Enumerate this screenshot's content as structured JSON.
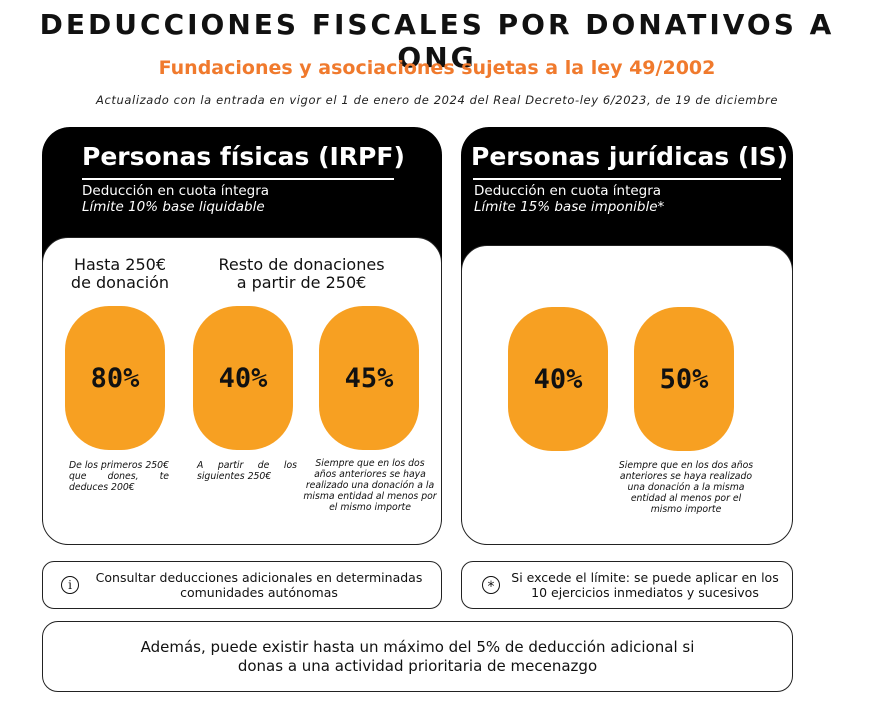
{
  "header": {
    "title": "DEDUCCIONES FISCALES POR DONATIVOS A ONG",
    "subtitle": "Fundaciones y asociaciones sujetas a la ley 49/2002",
    "updated": "Actualizado con la entrada en vigor el 1 de enero de 2024 del Real Decreto-ley 6/2023, de 19 de diciembre"
  },
  "irpf": {
    "title": "Personas físicas (IRPF)",
    "deduction": "Deducción en cuota íntegra",
    "limit": "Límite 10% base liquidable",
    "col1_heading": "Hasta 250€\nde donación",
    "col2_heading": "Resto de donaciones\na partir de 250€",
    "rates": [
      {
        "value": "80%",
        "note": "De los primeros 250€ que dones, te deduces 200€"
      },
      {
        "value": "40%",
        "note": "A partir de los siguientes 250€"
      },
      {
        "value": "45%",
        "note": "Siempre que en los dos años anteriores se haya realizado una donación a la misma entidad al menos por el mismo importe"
      }
    ]
  },
  "is": {
    "title": "Personas jurídicas (IS)",
    "deduction": "Deducción en cuota íntegra",
    "limit": "Límite 15% base imponible*",
    "rates": [
      {
        "value": "40%"
      },
      {
        "value": "50%",
        "note": "Siempre que en los dos años anteriores se haya realizado una donación a la misma entidad al menos por el mismo importe"
      }
    ]
  },
  "info": {
    "left_icon": "i",
    "left_text": "Consultar deducciones adicionales en determinadas comunidades autónomas",
    "right_icon": "*",
    "right_text": "Si excede el límite: se puede aplicar en los 10 ejercicios inmediatos y sucesivos"
  },
  "footer": {
    "text": "Además, puede existir hasta un máximo del 5% de deducción adicional si donas a una actividad prioritaria de mecenazgo"
  },
  "colors": {
    "accent_orange": "#f07a2d",
    "pill_orange": "#f7a022",
    "panel_black": "#000000"
  }
}
